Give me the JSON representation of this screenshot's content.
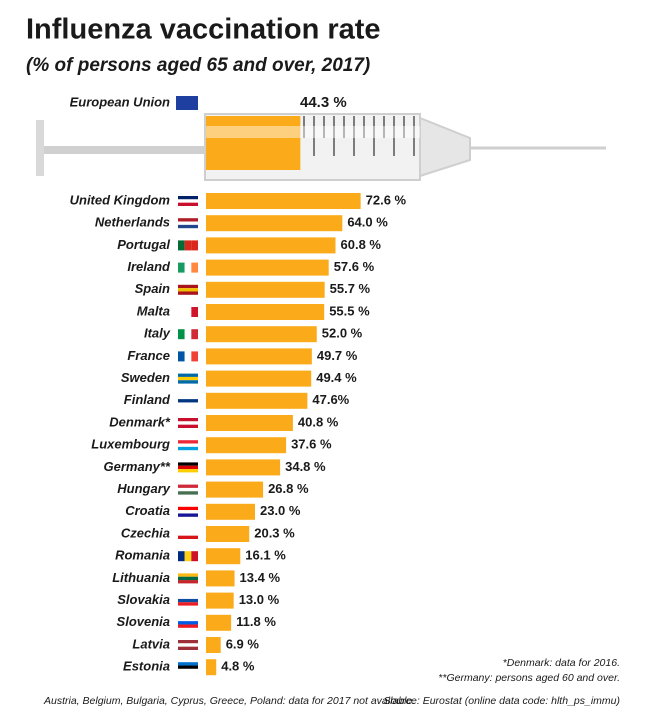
{
  "chart_data": {
    "type": "bar",
    "title": "Influenza vaccination rate",
    "subtitle": "(% of persons aged 65 and over, 2017)",
    "highlight": {
      "name": "European Union",
      "value": 44.3,
      "value_label": "44.3 %"
    },
    "categories": [
      "United Kingdom",
      "Netherlands",
      "Portugal",
      "Ireland",
      "Spain",
      "Malta",
      "Italy",
      "France",
      "Sweden",
      "Finland",
      "Denmark*",
      "Luxembourg",
      "Germany**",
      "Hungary",
      "Croatia",
      "Czechia",
      "Romania",
      "Lithuania",
      "Slovakia",
      "Slovenia",
      "Latvia",
      "Estonia"
    ],
    "values": [
      72.6,
      64.0,
      60.8,
      57.6,
      55.7,
      55.5,
      52.0,
      49.7,
      49.4,
      47.6,
      40.8,
      37.6,
      34.8,
      26.8,
      23.0,
      20.3,
      16.1,
      13.4,
      13.0,
      11.8,
      6.9,
      4.8
    ],
    "value_labels": [
      "72.6 %",
      "64.0 %",
      "60.8 %",
      "57.6 %",
      "55.7 %",
      "55.5 %",
      "52.0 %",
      "49.7 %",
      "49.4 %",
      "47.6%",
      "40.8 %",
      "37.6 %",
      "34.8 %",
      "26.8 %",
      "23.0 %",
      "20.3 %",
      "16.1 %",
      "13.4 %",
      "13.0 %",
      "11.8 %",
      "6.9 %",
      "4.8 %"
    ],
    "color": "#fbaa19",
    "notes": [
      "*Denmark: data for 2016.",
      "**Germany: persons aged 60 and over."
    ],
    "footnote": "Austria, Belgium, Bulgaria, Cyprus, Greece, Poland: data for 2017 not available.",
    "source": "Source: Eurostat (online data code: hlth_ps_immu)"
  }
}
